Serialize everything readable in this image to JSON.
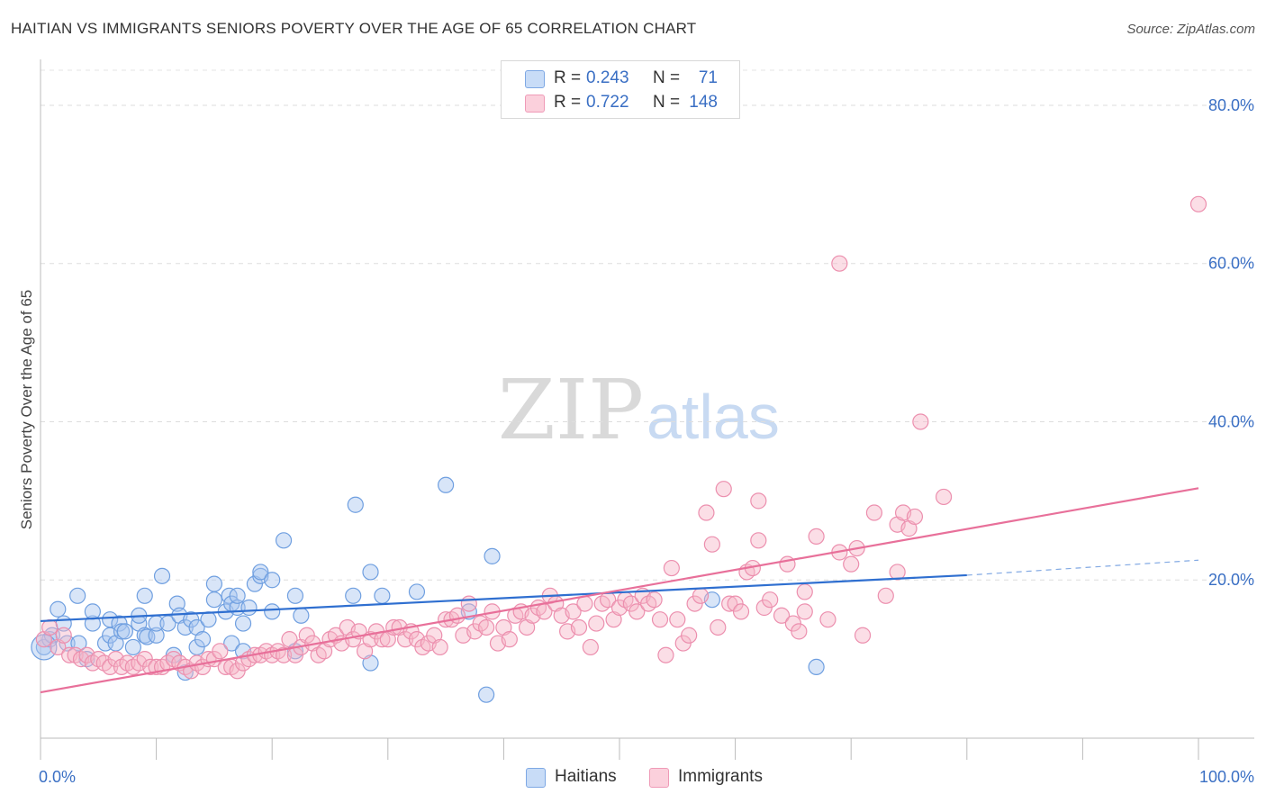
{
  "header": {
    "title": "HAITIAN VS IMMIGRANTS SENIORS POVERTY OVER THE AGE OF 65 CORRELATION CHART",
    "source": "Source: ZipAtlas.com"
  },
  "watermark": {
    "zip": "ZIP",
    "atlas": "atlas"
  },
  "legend": {
    "rows": [
      {
        "r_label": "R = ",
        "r_value": "0.243",
        "n_label": "N = ",
        "n_value": "71",
        "color": "#a8c6f0"
      },
      {
        "r_label": "R = ",
        "r_value": "0.722",
        "n_label": "N = ",
        "n_value": "148",
        "color": "#f6b6c8"
      }
    ],
    "bottom": [
      {
        "label": "Haitians",
        "color": "#a8c6f0"
      },
      {
        "label": "Immigrants",
        "color": "#f6b6c8"
      }
    ]
  },
  "chart_data": {
    "type": "scatter",
    "ylabel": "Seniors Poverty Over the Age of 65",
    "xlim": [
      0,
      100
    ],
    "ylim": [
      0,
      85
    ],
    "x_tick_labels": [
      "0.0%",
      "100.0%"
    ],
    "y_ticks": [
      20,
      40,
      60,
      80
    ],
    "y_tick_labels": [
      "20.0%",
      "40.0%",
      "60.0%",
      "80.0%"
    ],
    "grid": true,
    "colors": {
      "haitians_fill": "#a8c6f0",
      "haitians_stroke": "#6f9fe0",
      "haitians_line": "#2f6fd0",
      "immigrants_fill": "#f6b6c8",
      "immigrants_stroke": "#ec8fae",
      "immigrants_line": "#e8709a",
      "tick_label": "#3a6fc4"
    },
    "series": [
      {
        "name": "Haitians",
        "trend": {
          "x": [
            0,
            80
          ],
          "y": [
            14.8,
            20.6
          ],
          "dashed_to_x": 100,
          "dashed_to_y": 22.5
        },
        "points": [
          [
            0.3,
            11.5
          ],
          [
            0.8,
            12.5
          ],
          [
            1,
            13
          ],
          [
            1.5,
            16.3
          ],
          [
            2,
            14.5
          ],
          [
            2.3,
            12
          ],
          [
            3.3,
            12
          ],
          [
            3.2,
            18
          ],
          [
            4,
            10
          ],
          [
            4.5,
            14.5
          ],
          [
            4.5,
            16
          ],
          [
            5.6,
            12
          ],
          [
            6,
            13
          ],
          [
            6,
            15
          ],
          [
            6.5,
            12
          ],
          [
            6.8,
            14.5
          ],
          [
            7,
            13.5
          ],
          [
            7.3,
            13.5
          ],
          [
            8,
            11.5
          ],
          [
            8.5,
            14.5
          ],
          [
            8.5,
            15.5
          ],
          [
            9,
            18
          ],
          [
            9,
            13
          ],
          [
            9.2,
            12.8
          ],
          [
            10,
            13
          ],
          [
            10,
            14.5
          ],
          [
            10.5,
            20.5
          ],
          [
            11,
            14.5
          ],
          [
            11.5,
            10.5
          ],
          [
            11.8,
            17
          ],
          [
            12,
            15.5
          ],
          [
            12.5,
            14
          ],
          [
            12.5,
            8.3
          ],
          [
            13,
            15
          ],
          [
            13.5,
            11.5
          ],
          [
            13.5,
            14
          ],
          [
            14,
            12.5
          ],
          [
            14.5,
            15
          ],
          [
            15,
            17.5
          ],
          [
            15,
            19.5
          ],
          [
            16,
            16
          ],
          [
            16.3,
            18
          ],
          [
            16.5,
            17
          ],
          [
            16.5,
            12
          ],
          [
            17,
            16.5
          ],
          [
            17,
            18
          ],
          [
            17.5,
            11
          ],
          [
            17.5,
            14.5
          ],
          [
            18,
            16.5
          ],
          [
            18.5,
            19.5
          ],
          [
            19,
            20.5
          ],
          [
            19,
            21
          ],
          [
            20,
            20
          ],
          [
            20,
            16
          ],
          [
            21,
            25
          ],
          [
            22,
            18
          ],
          [
            22,
            11
          ],
          [
            22.5,
            15.5
          ],
          [
            27,
            18
          ],
          [
            27.2,
            29.5
          ],
          [
            28.5,
            21
          ],
          [
            28.5,
            9.5
          ],
          [
            29.5,
            18
          ],
          [
            32.5,
            18.5
          ],
          [
            35,
            32
          ],
          [
            37,
            16
          ],
          [
            39,
            23
          ],
          [
            38.5,
            5.5
          ],
          [
            58,
            17.5
          ],
          [
            67,
            9
          ]
        ]
      },
      {
        "name": "Immigrants",
        "trend": {
          "x": [
            0,
            100
          ],
          "y": [
            5.8,
            31.6
          ]
        },
        "points": [
          [
            0.3,
            12.5
          ],
          [
            0.8,
            14
          ],
          [
            1.5,
            11.5
          ],
          [
            2,
            13
          ],
          [
            2.5,
            10.5
          ],
          [
            3,
            10.5
          ],
          [
            3.5,
            10
          ],
          [
            4,
            10.5
          ],
          [
            4.5,
            9.5
          ],
          [
            5,
            10
          ],
          [
            5.5,
            9.5
          ],
          [
            6,
            9
          ],
          [
            6.5,
            10
          ],
          [
            7,
            9
          ],
          [
            7.5,
            9.5
          ],
          [
            8,
            9
          ],
          [
            8.5,
            9.5
          ],
          [
            9,
            10
          ],
          [
            9.5,
            9
          ],
          [
            10,
            9
          ],
          [
            10.5,
            9
          ],
          [
            11,
            9.5
          ],
          [
            11.5,
            10
          ],
          [
            12,
            9.5
          ],
          [
            12.5,
            9
          ],
          [
            13,
            8.5
          ],
          [
            13.5,
            9.5
          ],
          [
            14,
            9
          ],
          [
            14.5,
            10
          ],
          [
            15,
            10
          ],
          [
            15.5,
            11
          ],
          [
            16,
            9
          ],
          [
            16.5,
            9
          ],
          [
            17,
            8.5
          ],
          [
            17.5,
            9.5
          ],
          [
            18,
            10
          ],
          [
            18.5,
            10.5
          ],
          [
            19,
            10.5
          ],
          [
            19.5,
            11
          ],
          [
            20,
            10.5
          ],
          [
            20.5,
            11
          ],
          [
            21,
            10.5
          ],
          [
            21.5,
            12.5
          ],
          [
            22,
            10.5
          ],
          [
            22.5,
            11.5
          ],
          [
            23,
            13
          ],
          [
            23.5,
            12
          ],
          [
            24,
            10.5
          ],
          [
            24.5,
            11
          ],
          [
            25,
            12.5
          ],
          [
            25.5,
            13
          ],
          [
            26,
            12
          ],
          [
            26.5,
            14
          ],
          [
            27,
            12.5
          ],
          [
            27.5,
            13.5
          ],
          [
            28,
            11
          ],
          [
            28.5,
            12.5
          ],
          [
            29,
            13.5
          ],
          [
            29.5,
            12.5
          ],
          [
            30,
            12.5
          ],
          [
            30.5,
            14
          ],
          [
            31,
            14
          ],
          [
            31.5,
            12.5
          ],
          [
            32,
            13.5
          ],
          [
            32.5,
            12.5
          ],
          [
            33,
            11.5
          ],
          [
            33.5,
            12
          ],
          [
            34,
            13
          ],
          [
            34.5,
            11.5
          ],
          [
            35,
            15
          ],
          [
            35.5,
            15
          ],
          [
            36,
            15.5
          ],
          [
            36.5,
            13
          ],
          [
            37,
            17
          ],
          [
            37.5,
            13.5
          ],
          [
            38,
            14.5
          ],
          [
            38.5,
            14
          ],
          [
            39,
            16
          ],
          [
            39.5,
            12
          ],
          [
            40,
            14
          ],
          [
            40.5,
            12.5
          ],
          [
            41,
            15.5
          ],
          [
            41.5,
            16
          ],
          [
            42,
            14
          ],
          [
            42.5,
            15.5
          ],
          [
            43,
            16.5
          ],
          [
            43.5,
            16
          ],
          [
            44,
            18
          ],
          [
            44.5,
            17
          ],
          [
            45,
            15.5
          ],
          [
            45.5,
            13.5
          ],
          [
            46,
            16
          ],
          [
            46.5,
            14
          ],
          [
            47,
            17
          ],
          [
            47.5,
            11.5
          ],
          [
            48,
            14.5
          ],
          [
            48.5,
            17
          ],
          [
            49,
            17.5
          ],
          [
            49.5,
            15
          ],
          [
            50,
            16.5
          ],
          [
            50.5,
            17.5
          ],
          [
            51,
            17
          ],
          [
            51.5,
            16
          ],
          [
            52,
            18
          ],
          [
            52.5,
            17
          ],
          [
            53,
            17.5
          ],
          [
            53.5,
            15
          ],
          [
            54,
            10.5
          ],
          [
            54.5,
            21.5
          ],
          [
            55,
            15
          ],
          [
            55.5,
            12
          ],
          [
            56,
            13
          ],
          [
            56.5,
            17
          ],
          [
            57,
            18
          ],
          [
            57.5,
            28.5
          ],
          [
            58,
            24.5
          ],
          [
            58.5,
            14
          ],
          [
            59,
            31.5
          ],
          [
            59.5,
            17
          ],
          [
            60,
            17
          ],
          [
            60.5,
            16
          ],
          [
            61,
            21
          ],
          [
            61.5,
            21.5
          ],
          [
            62,
            30
          ],
          [
            62.5,
            16.5
          ],
          [
            63,
            17.5
          ],
          [
            64,
            15.5
          ],
          [
            64.5,
            22
          ],
          [
            65,
            14.5
          ],
          [
            65.5,
            13.5
          ],
          [
            66,
            18.5
          ],
          [
            67,
            25.5
          ],
          [
            68,
            15
          ],
          [
            69,
            23.5
          ],
          [
            70,
            22
          ],
          [
            70.5,
            24
          ],
          [
            71,
            13
          ],
          [
            72,
            28.5
          ],
          [
            73,
            18
          ],
          [
            74,
            27
          ],
          [
            74.5,
            28.5
          ],
          [
            75,
            26.5
          ],
          [
            75.5,
            28
          ],
          [
            76,
            40
          ],
          [
            78,
            30.5
          ],
          [
            69,
            60
          ],
          [
            100,
            67.5
          ],
          [
            62,
            25
          ],
          [
            66,
            16
          ],
          [
            74,
            21
          ]
        ]
      }
    ]
  }
}
